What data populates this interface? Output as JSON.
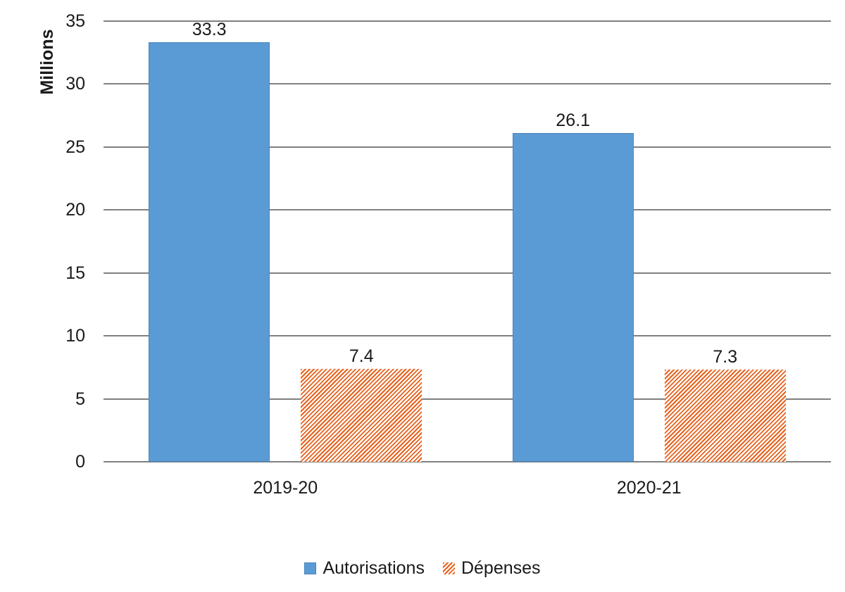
{
  "chart_data": {
    "type": "bar",
    "title": "",
    "ylabel": "Millions",
    "xlabel": "",
    "categories": [
      "2019-20",
      "2020-21"
    ],
    "series": [
      {
        "name": "Autorisations",
        "values": [
          33.3,
          26.1
        ],
        "labels": [
          "33.3",
          "26.1"
        ],
        "color": "#5B9BD5",
        "border_color": "#4A84BD",
        "pattern": "solid"
      },
      {
        "name": "Dépenses",
        "values": [
          7.4,
          7.3
        ],
        "labels": [
          "7.4",
          "7.3"
        ],
        "color": "#E8611C",
        "pattern": "diagonal-hatch"
      }
    ],
    "ylim": [
      0,
      35
    ],
    "yticks": [
      0,
      5,
      10,
      15,
      20,
      25,
      30,
      35
    ],
    "grid": true,
    "gridline_color": "#808080",
    "text_color": "#1A1A1A",
    "legend_position": "bottom-center"
  }
}
